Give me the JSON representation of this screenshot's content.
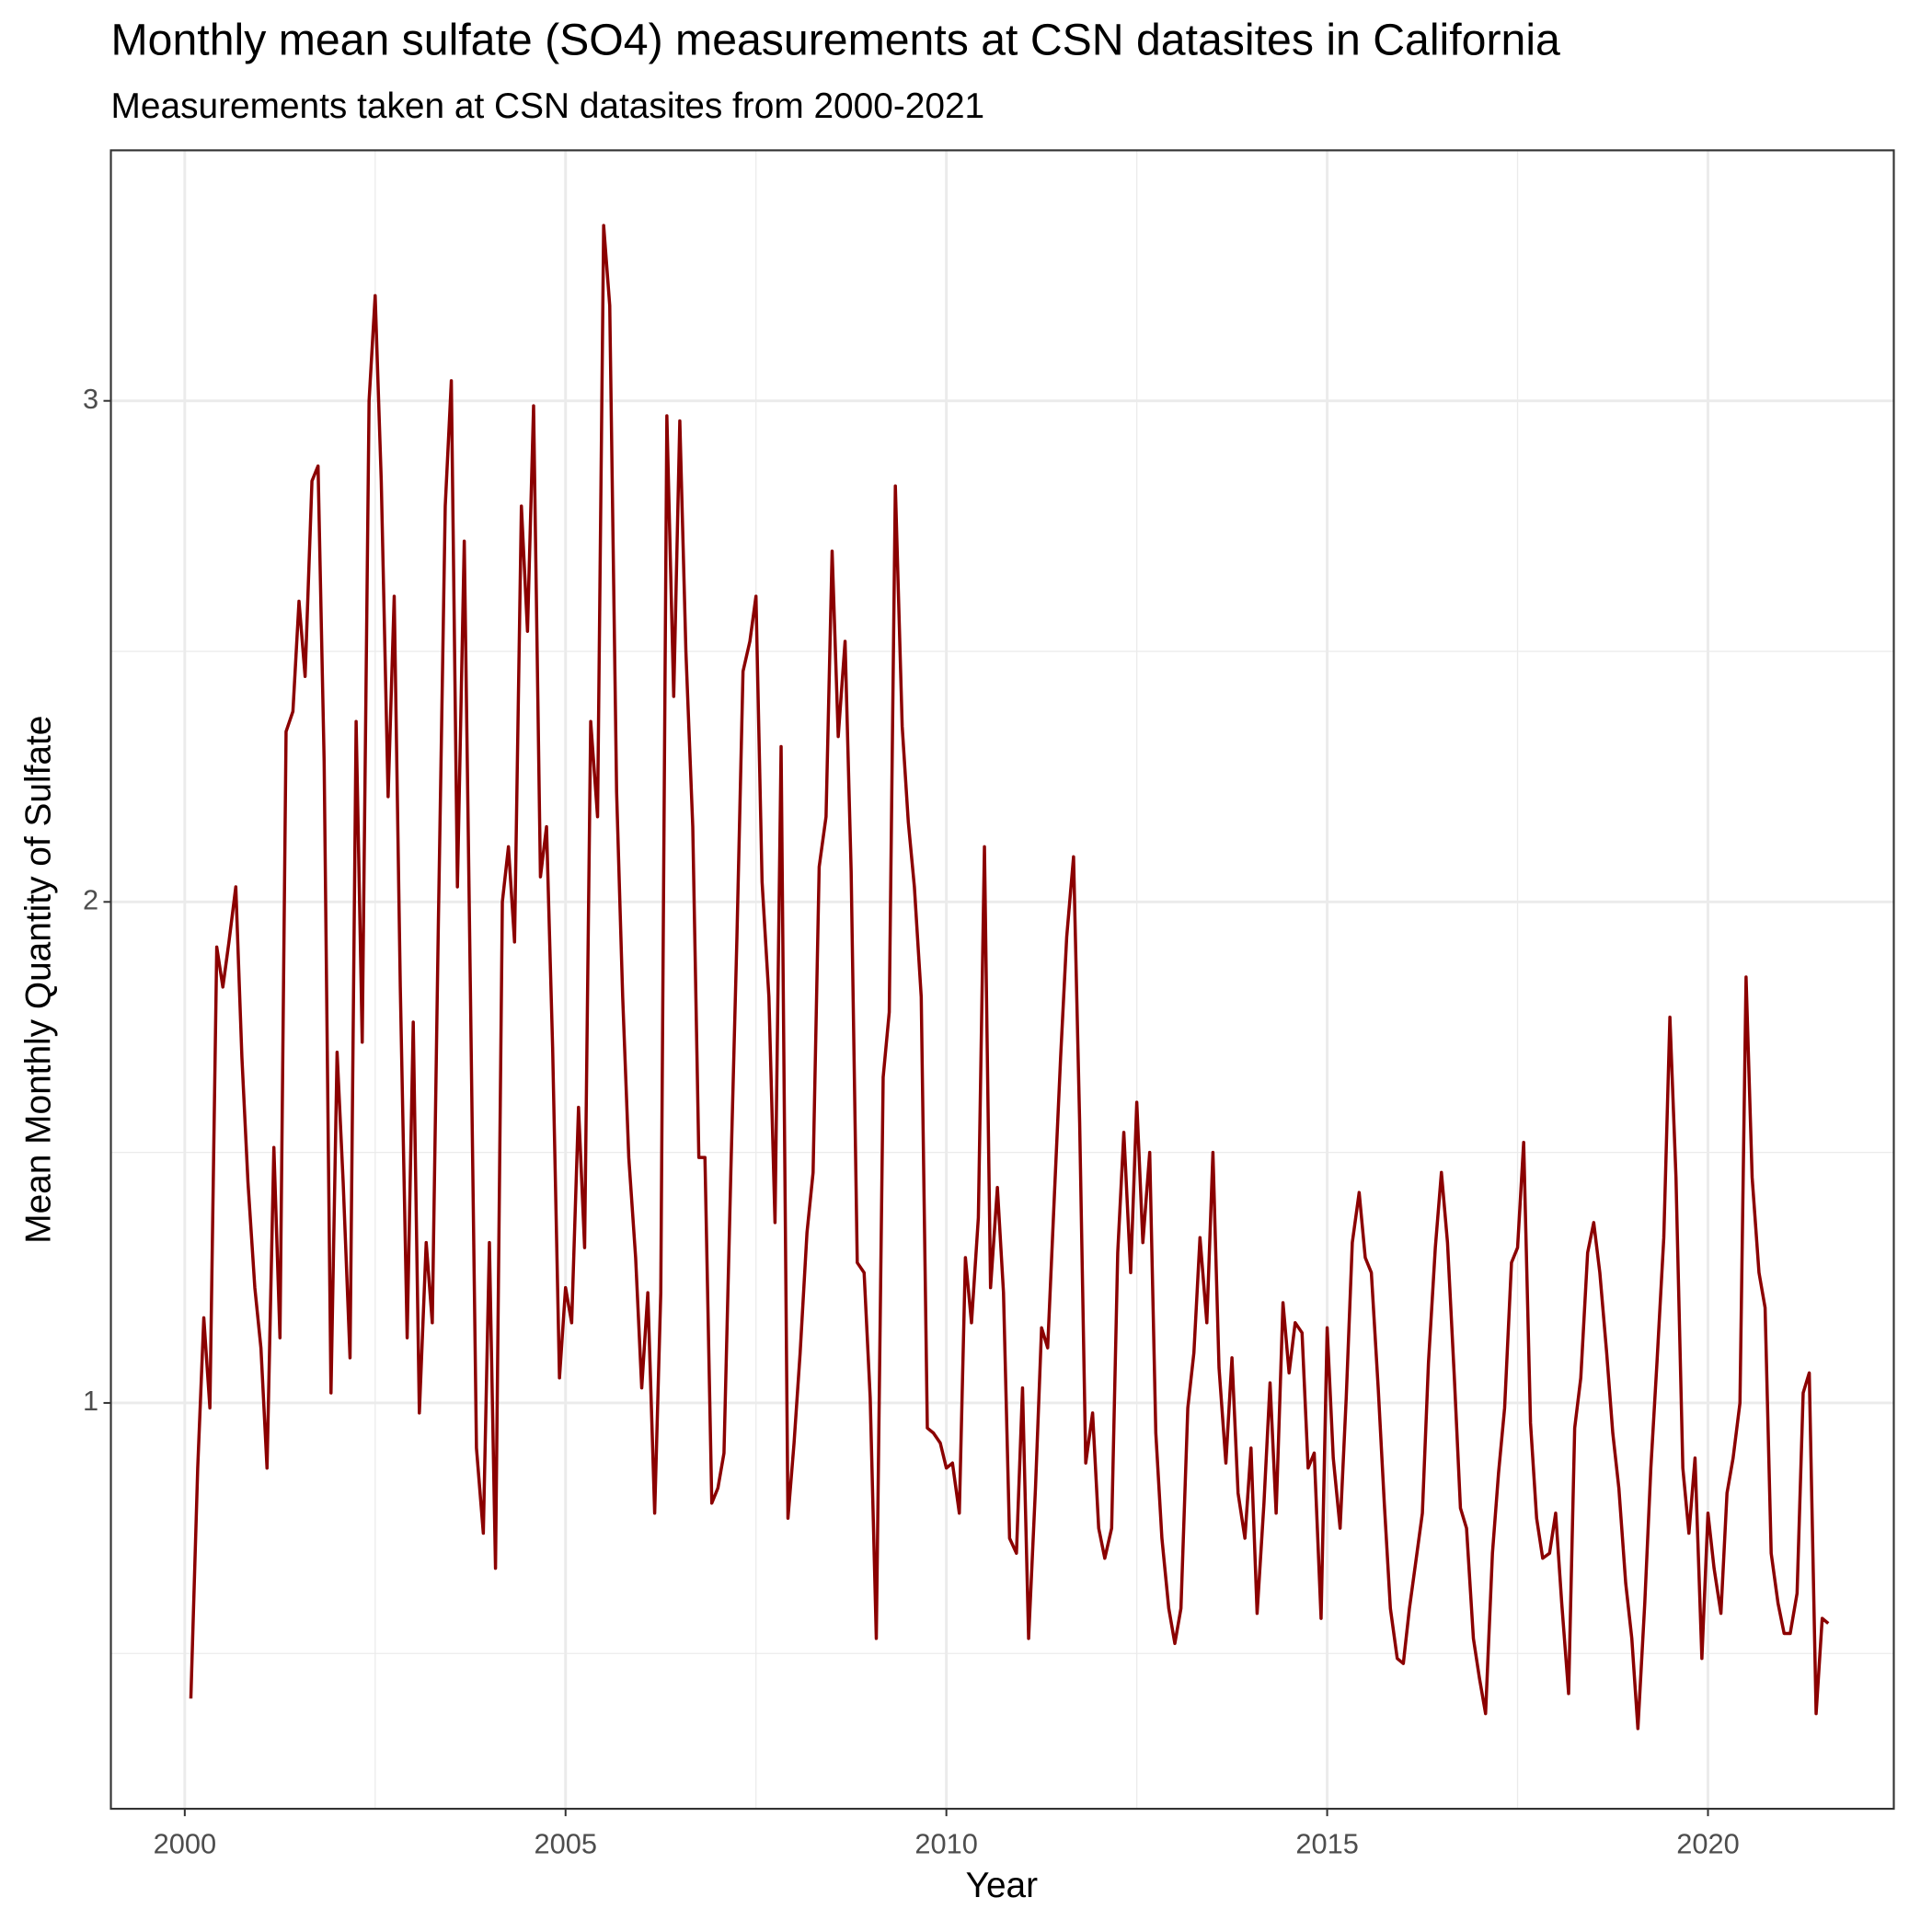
{
  "chart_data": {
    "type": "line",
    "title": "Monthly mean sulfate (SO4) measurements at CSN datasites in California",
    "subtitle": "Measurements taken at CSN datasites from 2000-2021",
    "x_label": "Year",
    "y_label": "Mean Monthly Quantity of Sulfate",
    "color": "#8b0000",
    "grid": true,
    "xlim": [
      1999.03,
      2022.44
    ],
    "ylim": [
      0.19,
      3.5
    ],
    "xticks": [
      2000,
      2005,
      2010,
      2015,
      2020
    ],
    "yticks": [
      1,
      2,
      3
    ],
    "minor_xticks": [
      2002.5,
      2007.5,
      2012.5,
      2017.5
    ],
    "minor_yticks": [
      0.5,
      1.5,
      2.5
    ],
    "x": [
      2000.08,
      2000.17,
      2000.25,
      2000.33,
      2000.42,
      2000.5,
      2000.58,
      2000.67,
      2000.75,
      2000.83,
      2000.92,
      2001,
      2001.08,
      2001.17,
      2001.25,
      2001.33,
      2001.42,
      2001.5,
      2001.58,
      2001.67,
      2001.75,
      2001.83,
      2001.92,
      2002,
      2002.08,
      2002.17,
      2002.25,
      2002.33,
      2002.42,
      2002.5,
      2002.58,
      2002.67,
      2002.75,
      2002.83,
      2002.92,
      2003,
      2003.08,
      2003.17,
      2003.25,
      2003.33,
      2003.42,
      2003.5,
      2003.58,
      2003.67,
      2003.75,
      2003.83,
      2003.92,
      2004,
      2004.08,
      2004.17,
      2004.25,
      2004.33,
      2004.42,
      2004.5,
      2004.58,
      2004.67,
      2004.75,
      2004.83,
      2004.92,
      2005,
      2005.08,
      2005.17,
      2005.25,
      2005.33,
      2005.42,
      2005.5,
      2005.58,
      2005.67,
      2005.75,
      2005.83,
      2005.92,
      2006,
      2006.08,
      2006.17,
      2006.25,
      2006.33,
      2006.42,
      2006.5,
      2006.58,
      2006.67,
      2006.75,
      2006.83,
      2006.92,
      2007,
      2007.08,
      2007.17,
      2007.25,
      2007.33,
      2007.42,
      2007.5,
      2007.58,
      2007.67,
      2007.75,
      2007.83,
      2007.92,
      2008,
      2008.08,
      2008.17,
      2008.25,
      2008.33,
      2008.42,
      2008.5,
      2008.58,
      2008.67,
      2008.75,
      2008.83,
      2008.92,
      2009,
      2009.08,
      2009.17,
      2009.25,
      2009.33,
      2009.42,
      2009.5,
      2009.58,
      2009.67,
      2009.75,
      2009.83,
      2009.92,
      2010,
      2010.08,
      2010.17,
      2010.25,
      2010.33,
      2010.42,
      2010.5,
      2010.58,
      2010.67,
      2010.75,
      2010.83,
      2010.92,
      2011,
      2011.08,
      2011.17,
      2011.25,
      2011.33,
      2011.42,
      2011.5,
      2011.58,
      2011.67,
      2011.75,
      2011.83,
      2011.92,
      2012,
      2012.08,
      2012.17,
      2012.25,
      2012.33,
      2012.42,
      2012.5,
      2012.58,
      2012.67,
      2012.75,
      2012.83,
      2012.92,
      2013,
      2013.08,
      2013.17,
      2013.25,
      2013.33,
      2013.42,
      2013.5,
      2013.58,
      2013.67,
      2013.75,
      2013.83,
      2013.92,
      2014,
      2014.08,
      2014.17,
      2014.25,
      2014.33,
      2014.42,
      2014.5,
      2014.58,
      2014.67,
      2014.75,
      2014.83,
      2014.92,
      2015,
      2015.08,
      2015.17,
      2015.25,
      2015.33,
      2015.42,
      2015.5,
      2015.58,
      2015.67,
      2015.75,
      2015.83,
      2015.92,
      2016,
      2016.08,
      2016.17,
      2016.25,
      2016.33,
      2016.42,
      2016.5,
      2016.58,
      2016.67,
      2016.75,
      2016.83,
      2016.92,
      2017,
      2017.08,
      2017.17,
      2017.25,
      2017.33,
      2017.42,
      2017.5,
      2017.58,
      2017.67,
      2017.75,
      2017.83,
      2017.92,
      2018,
      2018.08,
      2018.17,
      2018.25,
      2018.33,
      2018.42,
      2018.5,
      2018.58,
      2018.67,
      2018.75,
      2018.83,
      2018.92,
      2019,
      2019.08,
      2019.17,
      2019.25,
      2019.33,
      2019.42,
      2019.5,
      2019.58,
      2019.67,
      2019.75,
      2019.83,
      2019.92,
      2020,
      2020.08,
      2020.17,
      2020.25,
      2020.33,
      2020.42,
      2020.5,
      2020.58,
      2020.67,
      2020.75,
      2020.83,
      2020.92,
      2021,
      2021.08,
      2021.17,
      2021.25,
      2021.33,
      2021.42,
      2021.5,
      2021.58
    ],
    "values": [
      0.41,
      0.87,
      1.17,
      0.99,
      1.91,
      1.83,
      1.92,
      2.03,
      1.69,
      1.44,
      1.23,
      1.11,
      0.87,
      1.51,
      1.13,
      2.34,
      2.38,
      2.6,
      2.45,
      2.84,
      2.87,
      2.28,
      1.02,
      1.7,
      1.44,
      1.09,
      2.36,
      1.72,
      3.0,
      3.21,
      2.84,
      2.21,
      2.61,
      1.83,
      1.13,
      1.76,
      0.98,
      1.32,
      1.16,
      1.96,
      2.79,
      3.04,
      2.03,
      2.72,
      1.83,
      0.91,
      0.74,
      1.32,
      0.67,
      2.0,
      2.11,
      1.92,
      2.79,
      2.54,
      2.99,
      2.05,
      2.15,
      1.71,
      1.05,
      1.23,
      1.16,
      1.59,
      1.31,
      2.36,
      2.17,
      3.35,
      3.19,
      2.22,
      1.81,
      1.49,
      1.29,
      1.03,
      1.22,
      0.78,
      1.22,
      2.97,
      2.41,
      2.96,
      2.5,
      2.15,
      1.49,
      1.49,
      0.8,
      0.83,
      0.9,
      1.46,
      1.93,
      2.46,
      2.52,
      2.61,
      2.04,
      1.81,
      1.36,
      2.31,
      0.77,
      0.92,
      1.1,
      1.34,
      1.46,
      2.07,
      2.17,
      2.7,
      2.33,
      2.52,
      2.06,
      1.28,
      1.26,
      1.01,
      0.53,
      1.65,
      1.78,
      2.83,
      2.35,
      2.16,
      2.03,
      1.81,
      0.95,
      0.94,
      0.92,
      0.87,
      0.88,
      0.78,
      1.29,
      1.16,
      1.37,
      2.11,
      1.23,
      1.43,
      1.22,
      0.73,
      0.7,
      1.03,
      0.53,
      0.83,
      1.15,
      1.11,
      1.42,
      1.69,
      1.93,
      2.09,
      1.56,
      0.88,
      0.98,
      0.75,
      0.69,
      0.75,
      1.3,
      1.54,
      1.26,
      1.6,
      1.32,
      1.5,
      0.94,
      0.73,
      0.59,
      0.52,
      0.59,
      0.99,
      1.1,
      1.33,
      1.16,
      1.5,
      1.07,
      0.88,
      1.09,
      0.82,
      0.73,
      0.91,
      0.58,
      0.8,
      1.04,
      0.78,
      1.2,
      1.06,
      1.16,
      1.14,
      0.87,
      0.9,
      0.57,
      1.15,
      0.89,
      0.75,
      1.01,
      1.32,
      1.42,
      1.29,
      1.26,
      1.03,
      0.8,
      0.59,
      0.49,
      0.48,
      0.59,
      0.69,
      0.78,
      1.08,
      1.31,
      1.46,
      1.32,
      1.05,
      0.79,
      0.75,
      0.53,
      0.45,
      0.38,
      0.7,
      0.86,
      0.99,
      1.28,
      1.31,
      1.52,
      0.96,
      0.77,
      0.69,
      0.7,
      0.78,
      0.6,
      0.42,
      0.95,
      1.05,
      1.3,
      1.36,
      1.26,
      1.1,
      0.94,
      0.83,
      0.64,
      0.53,
      0.35,
      0.6,
      0.87,
      1.08,
      1.33,
      1.77,
      1.45,
      0.87,
      0.74,
      0.89,
      0.49,
      0.78,
      0.67,
      0.58,
      0.82,
      0.89,
      1.0,
      1.85,
      1.45,
      1.26,
      1.19,
      0.7,
      0.6,
      0.54,
      0.54,
      0.62,
      1.02,
      1.06,
      0.38,
      0.57,
      0.56
    ]
  }
}
